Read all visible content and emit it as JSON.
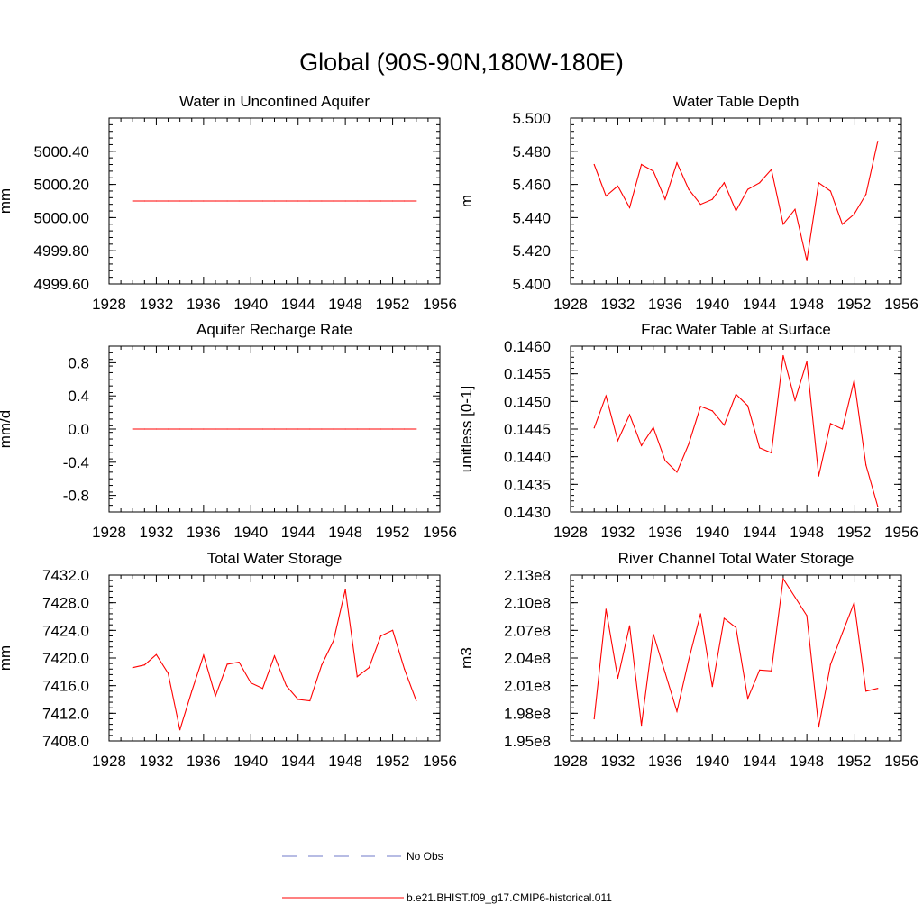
{
  "title": "Global (90S-90N,180W-180E)",
  "colors": {
    "model": "#ff0000",
    "obs": "#6f79c9",
    "axis": "#000000"
  },
  "legend": [
    {
      "label": "No Obs",
      "style": "dashed",
      "color": "#6f79c9"
    },
    {
      "label": "b.e21.BHIST.f09_g17.CMIP6-historical.011",
      "style": "solid",
      "color": "#ff0000"
    }
  ],
  "chart_data": [
    {
      "type": "line",
      "title": "Water in Unconfined Aquifer",
      "ylabel": "mm",
      "xlim": [
        1928,
        1956
      ],
      "ylim": [
        4999.6,
        5000.6
      ],
      "xticks": [
        "1928",
        "1932",
        "1936",
        "1940",
        "1944",
        "1948",
        "1952",
        "1956"
      ],
      "yticks": [
        "4999.60",
        "4999.80",
        "5000.00",
        "5000.20",
        "5000.40"
      ],
      "x": [
        1930,
        1931,
        1932,
        1933,
        1934,
        1935,
        1936,
        1937,
        1938,
        1939,
        1940,
        1941,
        1942,
        1943,
        1944,
        1945,
        1946,
        1947,
        1948,
        1949,
        1950,
        1951,
        1952,
        1953,
        1954
      ],
      "values": [
        5000.1,
        5000.1,
        5000.1,
        5000.1,
        5000.1,
        5000.1,
        5000.1,
        5000.1,
        5000.1,
        5000.1,
        5000.1,
        5000.1,
        5000.1,
        5000.1,
        5000.1,
        5000.1,
        5000.1,
        5000.1,
        5000.1,
        5000.1,
        5000.1,
        5000.1,
        5000.1,
        5000.1,
        5000.1
      ]
    },
    {
      "type": "line",
      "title": "Water Table Depth",
      "ylabel": "m",
      "xlim": [
        1928,
        1956
      ],
      "ylim": [
        5.4,
        5.5
      ],
      "xticks": [
        "1928",
        "1932",
        "1936",
        "1940",
        "1944",
        "1948",
        "1952",
        "1956"
      ],
      "yticks": [
        "5.400",
        "5.420",
        "5.440",
        "5.460",
        "5.480",
        "5.500"
      ],
      "x": [
        1930,
        1931,
        1932,
        1933,
        1934,
        1935,
        1936,
        1937,
        1938,
        1939,
        1940,
        1941,
        1942,
        1943,
        1944,
        1945,
        1946,
        1947,
        1948,
        1949,
        1950,
        1951,
        1952,
        1953,
        1954
      ],
      "values": [
        5.472,
        5.453,
        5.459,
        5.446,
        5.472,
        5.468,
        5.451,
        5.473,
        5.457,
        5.448,
        5.451,
        5.461,
        5.444,
        5.457,
        5.461,
        5.469,
        5.436,
        5.445,
        5.414,
        5.461,
        5.456,
        5.436,
        5.442,
        5.454,
        5.486
      ]
    },
    {
      "type": "line",
      "title": "Aquifer Recharge Rate",
      "ylabel": "mm/d",
      "xlim": [
        1928,
        1956
      ],
      "ylim": [
        -1,
        1
      ],
      "xticks": [
        "1928",
        "1932",
        "1936",
        "1940",
        "1944",
        "1948",
        "1952",
        "1956"
      ],
      "yticks": [
        "-0.8",
        "-0.4",
        "0.0",
        "0.4",
        "0.8"
      ],
      "x": [
        1930,
        1931,
        1932,
        1933,
        1934,
        1935,
        1936,
        1937,
        1938,
        1939,
        1940,
        1941,
        1942,
        1943,
        1944,
        1945,
        1946,
        1947,
        1948,
        1949,
        1950,
        1951,
        1952,
        1953,
        1954
      ],
      "values": [
        0,
        0,
        0,
        0,
        0,
        0,
        0,
        0,
        0,
        0,
        0,
        0,
        0,
        0,
        0,
        0,
        0,
        0,
        0,
        0,
        0,
        0,
        0,
        0,
        0
      ]
    },
    {
      "type": "line",
      "title": "Frac Water Table at Surface",
      "ylabel": "unitless [0-1]",
      "xlim": [
        1928,
        1956
      ],
      "ylim": [
        0.143,
        0.146
      ],
      "xticks": [
        "1928",
        "1932",
        "1936",
        "1940",
        "1944",
        "1948",
        "1952",
        "1956"
      ],
      "yticks": [
        "0.1430",
        "0.1435",
        "0.1440",
        "0.1445",
        "0.1450",
        "0.1455",
        "0.1460"
      ],
      "x": [
        1930,
        1931,
        1932,
        1933,
        1934,
        1935,
        1936,
        1937,
        1938,
        1939,
        1940,
        1941,
        1942,
        1943,
        1944,
        1945,
        1946,
        1947,
        1948,
        1949,
        1950,
        1951,
        1952,
        1953,
        1954
      ],
      "values": [
        0.14452,
        0.1451,
        0.14429,
        0.14476,
        0.1442,
        0.14453,
        0.14393,
        0.14372,
        0.14423,
        0.14491,
        0.14483,
        0.14457,
        0.14513,
        0.14492,
        0.14416,
        0.14407,
        0.14583,
        0.14502,
        0.14572,
        0.14365,
        0.1446,
        0.1445,
        0.14538,
        0.14385,
        0.1431
      ]
    },
    {
      "type": "line",
      "title": "Total Water Storage",
      "ylabel": "mm",
      "xlim": [
        1928,
        1956
      ],
      "ylim": [
        7408,
        7432
      ],
      "xticks": [
        "1928",
        "1932",
        "1936",
        "1940",
        "1944",
        "1948",
        "1952",
        "1956"
      ],
      "yticks": [
        "7408.0",
        "7412.0",
        "7416.0",
        "7420.0",
        "7424.0",
        "7428.0",
        "7432.0"
      ],
      "x": [
        1930,
        1931,
        1932,
        1933,
        1934,
        1935,
        1936,
        1937,
        1938,
        1939,
        1940,
        1941,
        1942,
        1943,
        1944,
        1945,
        1946,
        1947,
        1948,
        1949,
        1950,
        1951,
        1952,
        1953,
        1954
      ],
      "values": [
        7418.6,
        7419.0,
        7420.5,
        7417.8,
        7409.6,
        7415.2,
        7420.4,
        7414.5,
        7419.1,
        7419.4,
        7416.4,
        7415.6,
        7420.3,
        7416.0,
        7414.0,
        7413.8,
        7419.0,
        7422.5,
        7429.9,
        7417.3,
        7418.6,
        7423.2,
        7424.0,
        7418.4,
        7413.8
      ]
    },
    {
      "type": "line",
      "title": "River Channel Total Water Storage",
      "ylabel": "m3",
      "xlim": [
        1928,
        1956
      ],
      "ylim": [
        195000000,
        213000000
      ],
      "xticks": [
        "1928",
        "1932",
        "1936",
        "1940",
        "1944",
        "1948",
        "1952",
        "1956"
      ],
      "yticks": [
        "1.95e8",
        "1.98e8",
        "2.01e8",
        "2.04e8",
        "2.07e8",
        "2.10e8",
        "2.13e8"
      ],
      "x": [
        1930,
        1931,
        1932,
        1933,
        1934,
        1935,
        1936,
        1937,
        1938,
        1939,
        1940,
        1941,
        1942,
        1943,
        1944,
        1945,
        1946,
        1947,
        1948,
        1949,
        1950,
        1951,
        1952,
        1953,
        1954
      ],
      "values": [
        197400000,
        209300000,
        201800000,
        207500000,
        196700000,
        206600000,
        202400000,
        198200000,
        203800000,
        208800000,
        200900000,
        208300000,
        207300000,
        199600000,
        202700000,
        202600000,
        212600000,
        210600000,
        208600000,
        196500000,
        203300000,
        206700000,
        210000000,
        200400000,
        200700000
      ]
    }
  ]
}
